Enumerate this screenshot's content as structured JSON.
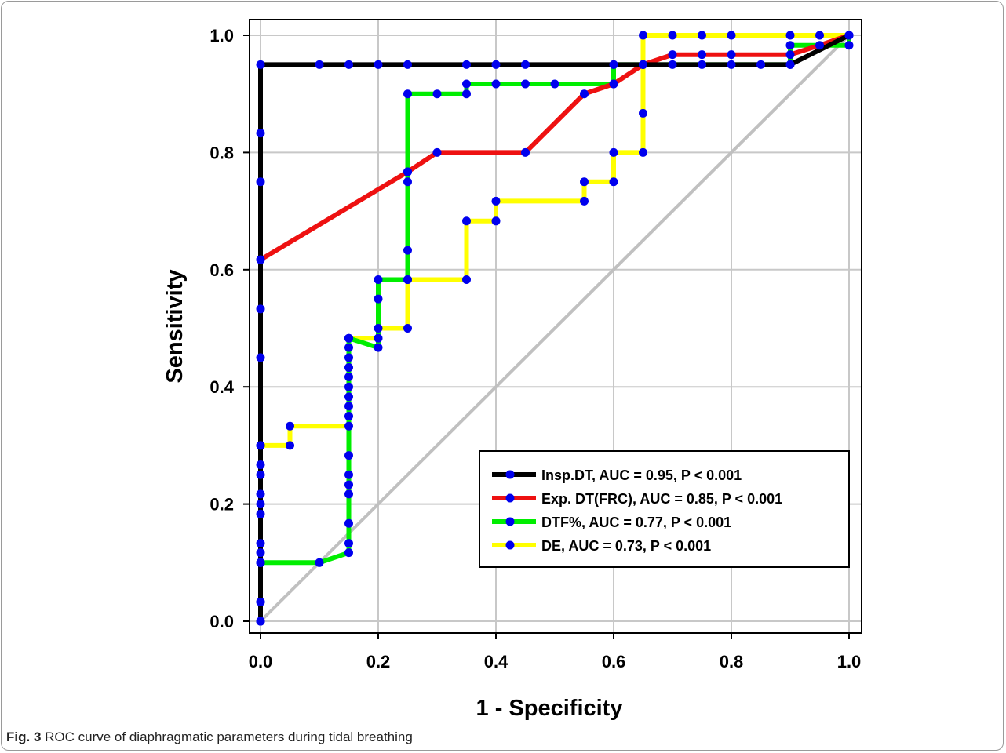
{
  "figure": {
    "caption_label": "Fig. 3",
    "caption_text": "ROC curve of diaphragmatic parameters during tidal breathing"
  },
  "chart_data": {
    "type": "line",
    "xlabel": "1 - Specificity",
    "ylabel": "Sensitivity",
    "xlim": [
      0,
      1
    ],
    "ylim": [
      0,
      1
    ],
    "xticks": [
      "0.0",
      "0.2",
      "0.4",
      "0.6",
      "0.8",
      "1.0"
    ],
    "yticks": [
      "0.0",
      "0.2",
      "0.4",
      "0.6",
      "0.8",
      "1.0"
    ],
    "grid": true,
    "legend_position": "bottom-right",
    "marker_color": "#0000ee",
    "reference_line": {
      "color": "#c0c0c0",
      "points": [
        [
          0,
          0
        ],
        [
          1,
          1
        ]
      ]
    },
    "series": [
      {
        "name": "DE, AUC = 0.73, P < 0.001",
        "color": "#ffff00",
        "points": [
          [
            0,
            0
          ],
          [
            0,
            0.033
          ],
          [
            0,
            0.1
          ],
          [
            0,
            0.117
          ],
          [
            0,
            0.133
          ],
          [
            0,
            0.183
          ],
          [
            0,
            0.217
          ],
          [
            0,
            0.25
          ],
          [
            0,
            0.267
          ],
          [
            0,
            0.3
          ],
          [
            0.05,
            0.3
          ],
          [
            0.05,
            0.333
          ],
          [
            0.15,
            0.333
          ],
          [
            0.15,
            0.483
          ],
          [
            0.2,
            0.483
          ],
          [
            0.2,
            0.5
          ],
          [
            0.25,
            0.5
          ],
          [
            0.25,
            0.583
          ],
          [
            0.35,
            0.583
          ],
          [
            0.35,
            0.683
          ],
          [
            0.4,
            0.683
          ],
          [
            0.4,
            0.717
          ],
          [
            0.55,
            0.717
          ],
          [
            0.55,
            0.75
          ],
          [
            0.6,
            0.75
          ],
          [
            0.6,
            0.8
          ],
          [
            0.65,
            0.8
          ],
          [
            0.65,
            0.867
          ],
          [
            0.65,
            0.95
          ],
          [
            0.65,
            1.0
          ],
          [
            0.7,
            1.0
          ],
          [
            0.75,
            1.0
          ],
          [
            0.8,
            1.0
          ],
          [
            0.9,
            1.0
          ],
          [
            0.95,
            1.0
          ],
          [
            1.0,
            1.0
          ]
        ]
      },
      {
        "name": "DTF%, AUC = 0.77, P < 0.001",
        "color": "#00ee00",
        "points": [
          [
            0,
            0
          ],
          [
            0,
            0.033
          ],
          [
            0,
            0.1
          ],
          [
            0.1,
            0.1
          ],
          [
            0.15,
            0.117
          ],
          [
            0.15,
            0.133
          ],
          [
            0.15,
            0.167
          ],
          [
            0.15,
            0.217
          ],
          [
            0.15,
            0.233
          ],
          [
            0.15,
            0.25
          ],
          [
            0.15,
            0.283
          ],
          [
            0.15,
            0.35
          ],
          [
            0.15,
            0.367
          ],
          [
            0.15,
            0.383
          ],
          [
            0.15,
            0.4
          ],
          [
            0.15,
            0.417
          ],
          [
            0.15,
            0.433
          ],
          [
            0.15,
            0.45
          ],
          [
            0.15,
            0.467
          ],
          [
            0.15,
            0.483
          ],
          [
            0.2,
            0.467
          ],
          [
            0.2,
            0.55
          ],
          [
            0.2,
            0.583
          ],
          [
            0.25,
            0.583
          ],
          [
            0.25,
            0.633
          ],
          [
            0.25,
            0.75
          ],
          [
            0.25,
            0.767
          ],
          [
            0.25,
            0.9
          ],
          [
            0.3,
            0.9
          ],
          [
            0.35,
            0.9
          ],
          [
            0.35,
            0.917
          ],
          [
            0.4,
            0.917
          ],
          [
            0.45,
            0.917
          ],
          [
            0.5,
            0.917
          ],
          [
            0.6,
            0.917
          ],
          [
            0.6,
            0.95
          ],
          [
            0.65,
            0.95
          ],
          [
            0.7,
            0.95
          ],
          [
            0.75,
            0.95
          ],
          [
            0.8,
            0.95
          ],
          [
            0.85,
            0.95
          ],
          [
            0.9,
            0.95
          ],
          [
            0.9,
            0.983
          ],
          [
            1.0,
            0.983
          ],
          [
            1.0,
            1.0
          ]
        ]
      },
      {
        "name": "Exp. DT(FRC), AUC = 0.85, P < 0.001",
        "color": "#ee1111",
        "points": [
          [
            0,
            0
          ],
          [
            0,
            0.1
          ],
          [
            0,
            0.2
          ],
          [
            0,
            0.3
          ],
          [
            0,
            0.45
          ],
          [
            0,
            0.533
          ],
          [
            0,
            0.617
          ],
          [
            0.25,
            0.767
          ],
          [
            0.3,
            0.8
          ],
          [
            0.45,
            0.8
          ],
          [
            0.55,
            0.9
          ],
          [
            0.6,
            0.917
          ],
          [
            0.65,
            0.95
          ],
          [
            0.7,
            0.967
          ],
          [
            0.75,
            0.967
          ],
          [
            0.8,
            0.967
          ],
          [
            0.9,
            0.967
          ],
          [
            0.95,
            0.983
          ],
          [
            1.0,
            1.0
          ]
        ]
      },
      {
        "name": "Insp.DT, AUC = 0.95, P < 0.001",
        "color": "#000000",
        "points": [
          [
            0,
            0
          ],
          [
            0,
            0.617
          ],
          [
            0,
            0.75
          ],
          [
            0,
            0.833
          ],
          [
            0,
            0.95
          ],
          [
            0.1,
            0.95
          ],
          [
            0.15,
            0.95
          ],
          [
            0.2,
            0.95
          ],
          [
            0.25,
            0.95
          ],
          [
            0.35,
            0.95
          ],
          [
            0.4,
            0.95
          ],
          [
            0.45,
            0.95
          ],
          [
            0.6,
            0.95
          ],
          [
            0.65,
            0.95
          ],
          [
            0.9,
            0.95
          ],
          [
            1.0,
            1.0
          ]
        ]
      }
    ]
  }
}
